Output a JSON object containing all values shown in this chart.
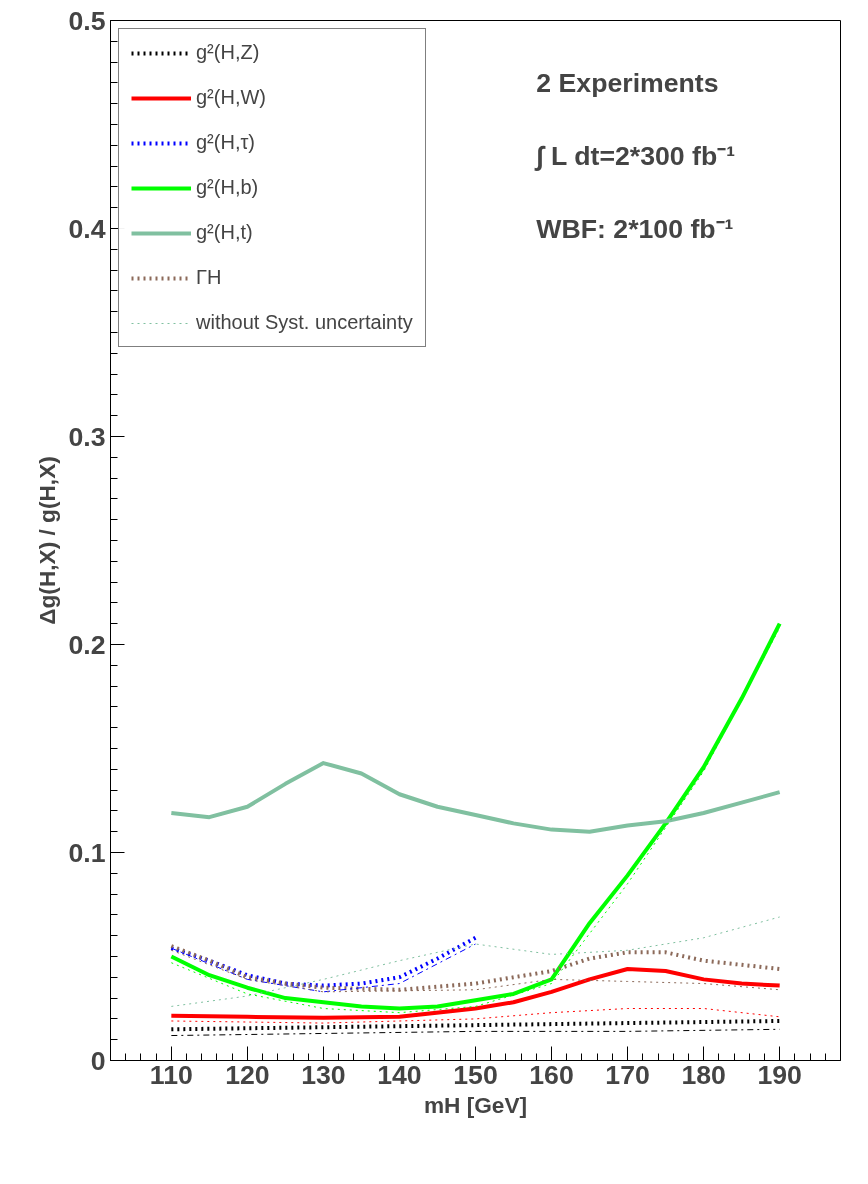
{
  "chart_data": {
    "type": "line",
    "xlabel": "mH [GeV]",
    "ylabel": "Δg(H,X) / g(H,X)",
    "xlim": [
      102,
      198
    ],
    "ylim": [
      0,
      0.5
    ],
    "xticks": [
      110,
      120,
      130,
      140,
      150,
      160,
      170,
      180,
      190
    ],
    "yticks": [
      0,
      0.1,
      0.2,
      0.3,
      0.4,
      0.5
    ],
    "grid": false,
    "legend": "top left",
    "marker": "none",
    "annotations": [
      "2 Experiments",
      "∫ L dt=2*300 fb⁻¹",
      "WBF: 2*100 fb⁻¹"
    ],
    "series": [
      {
        "name": "g²(H,Z)",
        "color": "#000000",
        "line_style": "dotted",
        "x": [
          110,
          130,
          150,
          170,
          190
        ],
        "values": [
          0.015,
          0.016,
          0.017,
          0.018,
          0.019
        ]
      },
      {
        "name": "g²(H,W)",
        "color": "#ff0000",
        "line_style": "solid",
        "x": [
          110,
          120,
          130,
          140,
          150,
          155,
          160,
          165,
          170,
          175,
          180,
          185,
          190
        ],
        "values": [
          0.0215,
          0.021,
          0.0205,
          0.021,
          0.025,
          0.028,
          0.033,
          0.039,
          0.044,
          0.043,
          0.039,
          0.037,
          0.036
        ]
      },
      {
        "name": "g²(H,τ)",
        "color": "#0000ff",
        "line_style": "dotted",
        "x": [
          110,
          115,
          120,
          125,
          130,
          135,
          140,
          145,
          150
        ],
        "values": [
          0.054,
          0.048,
          0.041,
          0.037,
          0.036,
          0.037,
          0.04,
          0.049,
          0.059
        ]
      },
      {
        "name": "g²(H,b)",
        "color": "#00ff00",
        "line_style": "solid",
        "x": [
          110,
          115,
          120,
          125,
          130,
          135,
          140,
          145,
          150,
          155,
          160,
          165,
          170,
          175,
          180,
          185,
          190
        ],
        "values": [
          0.05,
          0.041,
          0.035,
          0.03,
          0.028,
          0.026,
          0.025,
          0.026,
          0.029,
          0.032,
          0.039,
          0.066,
          0.089,
          0.114,
          0.141,
          0.174,
          0.21
        ]
      },
      {
        "name": "g²(H,t)",
        "color": "#80c0a0",
        "line_style": "solid",
        "x": [
          110,
          115,
          120,
          125,
          130,
          135,
          140,
          145,
          150,
          155,
          160,
          165,
          170,
          175,
          180,
          185,
          190
        ],
        "values": [
          0.119,
          0.117,
          0.122,
          0.133,
          0.143,
          0.138,
          0.128,
          0.122,
          0.118,
          0.114,
          0.111,
          0.11,
          0.113,
          0.115,
          0.119,
          0.124,
          0.129
        ]
      },
      {
        "name": "ΓH",
        "color": "#8c6a5a",
        "line_style": "dotted",
        "x": [
          110,
          115,
          120,
          125,
          130,
          140,
          150,
          160,
          165,
          170,
          175,
          180,
          190
        ],
        "values": [
          0.055,
          0.048,
          0.04,
          0.037,
          0.035,
          0.034,
          0.037,
          0.043,
          0.049,
          0.052,
          0.052,
          0.048,
          0.044
        ]
      },
      {
        "name": "without Syst. uncertainty",
        "color": "#80c0a0",
        "line_style": "dotted",
        "x": [
          110,
          120,
          130,
          140,
          150,
          160,
          170,
          180,
          190
        ],
        "values": [
          0.026,
          0.031,
          0.039,
          0.048,
          0.056,
          0.051,
          0.053,
          0.059,
          0.069
        ]
      },
      {
        "color": "#000000",
        "line_style": "dashdot",
        "x": [
          110,
          130,
          150,
          170,
          190
        ],
        "values": [
          0.012,
          0.013,
          0.014,
          0.014,
          0.015
        ]
      },
      {
        "color": "#ff0000",
        "line_style": "dotted",
        "x": [
          110,
          130,
          150,
          160,
          170,
          180,
          190
        ],
        "values": [
          0.019,
          0.018,
          0.02,
          0.023,
          0.025,
          0.025,
          0.021
        ]
      },
      {
        "color": "#0000ff",
        "line_style": "dashdot",
        "x": [
          110,
          120,
          130,
          140,
          150
        ],
        "values": [
          0.054,
          0.039,
          0.033,
          0.037,
          0.056
        ]
      },
      {
        "color": "#00ff00",
        "line_style": "dotted",
        "x": [
          110,
          120,
          130,
          140,
          150,
          160,
          170,
          180,
          190
        ],
        "values": [
          0.047,
          0.032,
          0.025,
          0.023,
          0.026,
          0.037,
          0.085,
          0.139,
          0.208
        ]
      },
      {
        "color": "#8c6a5a",
        "line_style": "dotted",
        "x": [
          110,
          120,
          130,
          150,
          160,
          170,
          180,
          190
        ],
        "values": [
          0.053,
          0.039,
          0.033,
          0.034,
          0.039,
          0.038,
          0.037,
          0.034
        ]
      }
    ]
  }
}
